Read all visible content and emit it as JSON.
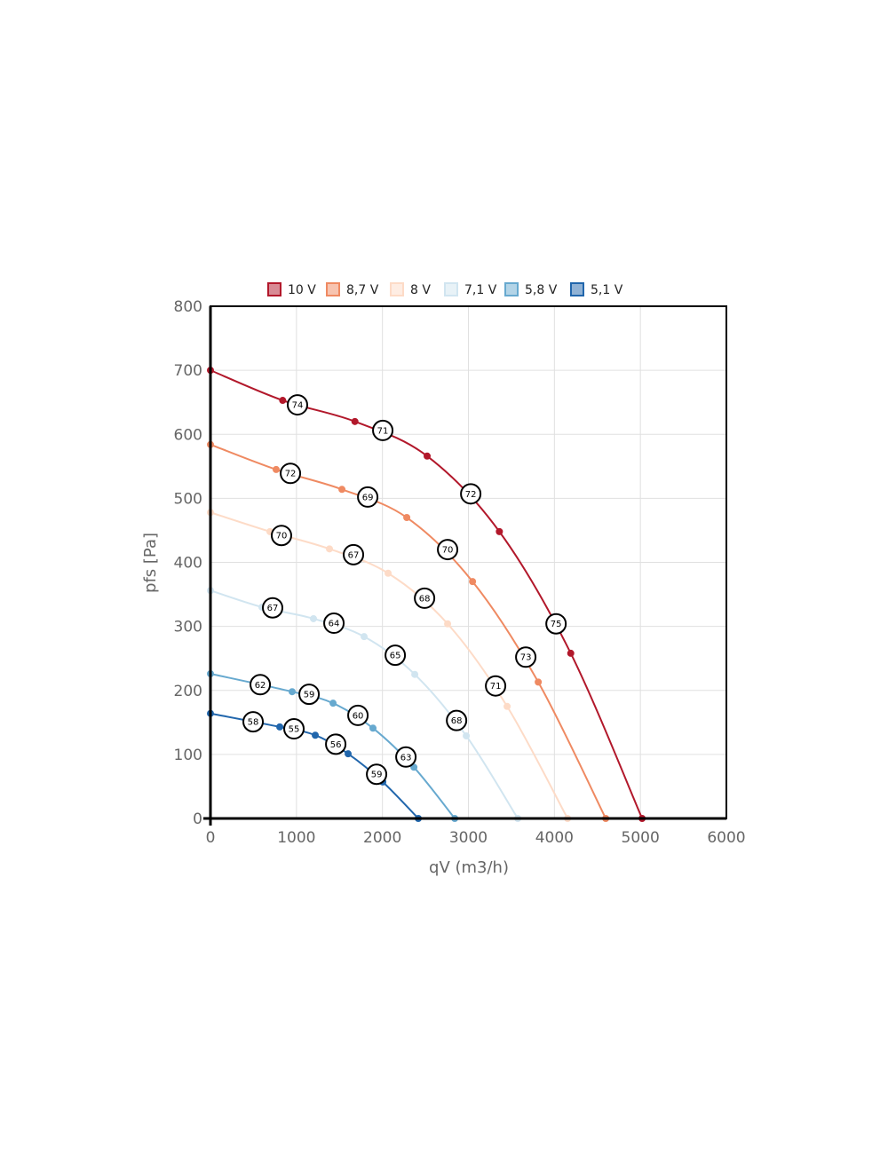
{
  "chart_data": {
    "type": "line",
    "title": "",
    "xlabel": "qV (m3/h)",
    "ylabel": "pfs [Pa]",
    "xlim": [
      0,
      6000
    ],
    "ylim": [
      0,
      800
    ],
    "xticks": [
      "0",
      "1000",
      "2000",
      "3000",
      "4000",
      "5000",
      "6000"
    ],
    "yticks": [
      "0",
      "100",
      "200",
      "300",
      "400",
      "500",
      "600",
      "700",
      "800"
    ],
    "xtick_values": [
      0,
      1000,
      2000,
      3000,
      4000,
      5000,
      6000
    ],
    "ytick_values": [
      0,
      100,
      200,
      300,
      400,
      500,
      600,
      700,
      800
    ],
    "grid": true,
    "legend_position": "top-center",
    "series": [
      {
        "name": "10 V",
        "color": "#b2182b",
        "x": [
          0,
          840,
          1680,
          2520,
          3360,
          4190,
          5020
        ],
        "y": [
          700,
          653,
          620,
          566,
          448,
          258,
          0
        ],
        "labels": [
          {
            "text": "74",
            "x": 1012,
            "y": 646
          },
          {
            "text": "71",
            "x": 2004,
            "y": 606
          },
          {
            "text": "72",
            "x": 3027,
            "y": 507
          },
          {
            "text": "75",
            "x": 4019,
            "y": 304
          }
        ]
      },
      {
        "name": "8,7 V",
        "color": "#ef8a62",
        "x": [
          0,
          764,
          1529,
          2283,
          3048,
          3812,
          4597
        ],
        "y": [
          584,
          545,
          514,
          470,
          370,
          213,
          0
        ],
        "labels": [
          {
            "text": "72",
            "x": 930,
            "y": 539
          },
          {
            "text": "69",
            "x": 1829,
            "y": 502
          },
          {
            "text": "70",
            "x": 2758,
            "y": 420
          },
          {
            "text": "73",
            "x": 3667,
            "y": 252
          }
        ]
      },
      {
        "name": "8 V",
        "color": "#fddbc7",
        "x": [
          0,
          692,
          1384,
          2066,
          2758,
          3450,
          4153
        ],
        "y": [
          478,
          448,
          421,
          383,
          304,
          175,
          0
        ],
        "labels": [
          {
            "text": "70",
            "x": 826,
            "y": 442
          },
          {
            "text": "67",
            "x": 1663,
            "y": 412
          },
          {
            "text": "68",
            "x": 2490,
            "y": 344
          },
          {
            "text": "71",
            "x": 3316,
            "y": 207
          }
        ]
      },
      {
        "name": "7,1 V",
        "color": "#d1e5f0",
        "x": [
          0,
          599,
          1198,
          1787,
          2376,
          2975,
          3574
        ],
        "y": [
          356,
          330,
          312,
          284,
          225,
          129,
          0
        ],
        "labels": [
          {
            "text": "67",
            "x": 723,
            "y": 329
          },
          {
            "text": "64",
            "x": 1436,
            "y": 305
          },
          {
            "text": "65",
            "x": 2149,
            "y": 255
          },
          {
            "text": "68",
            "x": 2862,
            "y": 153
          }
        ]
      },
      {
        "name": "5,8 V",
        "color": "#67a9cf",
        "x": [
          0,
          950,
          1426,
          1890,
          2366,
          2841
        ],
        "y": [
          226,
          198,
          180,
          141,
          80,
          0
        ],
        "labels": [
          {
            "text": "62",
            "x": 579,
            "y": 209
          },
          {
            "text": "59",
            "x": 1147,
            "y": 194
          },
          {
            "text": "60",
            "x": 1715,
            "y": 161
          },
          {
            "text": "63",
            "x": 2273,
            "y": 96
          }
        ]
      },
      {
        "name": "5,1 V",
        "color": "#2166ac",
        "x": [
          0,
          806,
          1219,
          1601,
          2004,
          2417
        ],
        "y": [
          164,
          143,
          130,
          101,
          57,
          0
        ],
        "labels": [
          {
            "text": "58",
            "x": 496,
            "y": 151
          },
          {
            "text": "55",
            "x": 971,
            "y": 140
          },
          {
            "text": "56",
            "x": 1457,
            "y": 116
          },
          {
            "text": "59",
            "x": 1932,
            "y": 69
          }
        ]
      }
    ]
  }
}
